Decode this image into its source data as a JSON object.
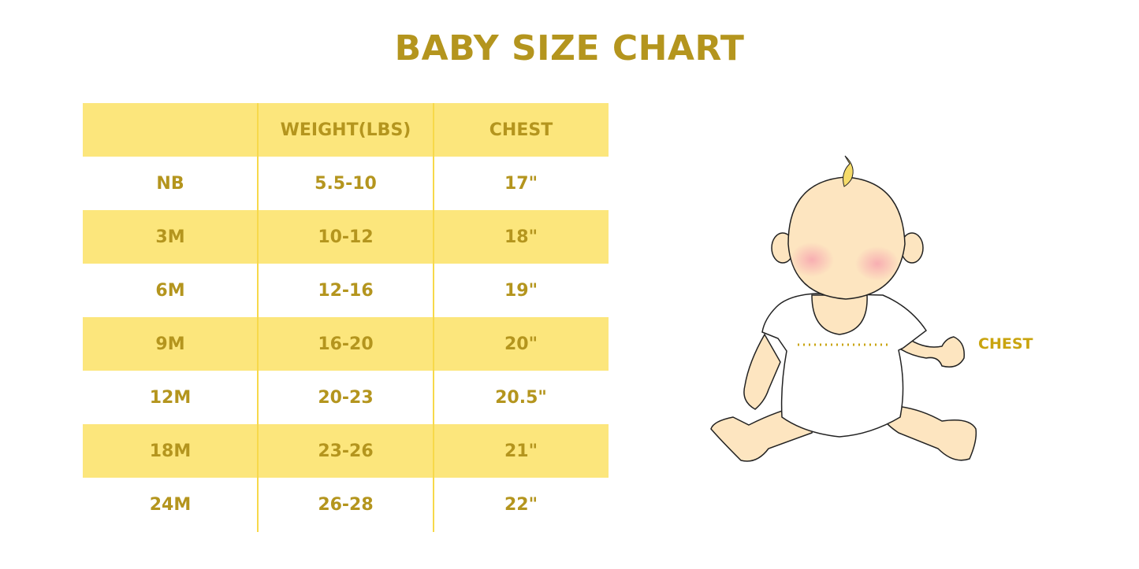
{
  "title": "BABY SIZE CHART",
  "table": {
    "headers": [
      "",
      "WEIGHT(LBS)",
      "CHEST"
    ],
    "rows": [
      [
        "NB",
        "5.5-10",
        "17\""
      ],
      [
        "3M",
        "10-12",
        "18\""
      ],
      [
        "6M",
        "12-16",
        "19\""
      ],
      [
        "9M",
        "16-20",
        "20\""
      ],
      [
        "12M",
        "20-23",
        "20.5\""
      ],
      [
        "18M",
        "23-26",
        "21\""
      ],
      [
        "24M",
        "26-28",
        "22\""
      ]
    ]
  },
  "illustration": {
    "chest_label": "CHEST"
  },
  "colors": {
    "text": "#b4951e",
    "stripe": "#fce67c",
    "divider": "#f7d94a",
    "skin": "#fde5c0"
  }
}
